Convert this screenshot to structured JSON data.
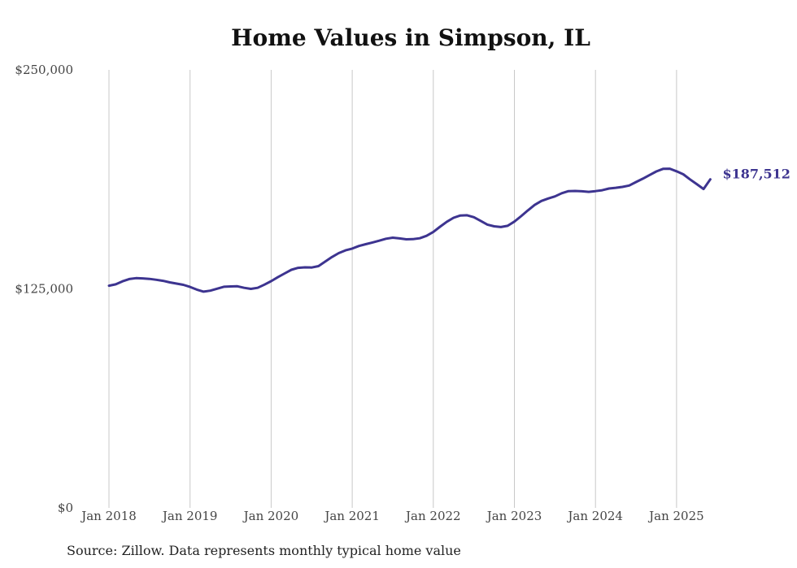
{
  "chart_data": {
    "type": "line",
    "title": "Home Values in Simpson, IL",
    "xlabel": "",
    "ylabel": "",
    "ylim": [
      0,
      250000
    ],
    "y_ticks": [
      "$0",
      "$125,000",
      "$250,000"
    ],
    "x_ticks": [
      "Jan 2018",
      "Jan 2019",
      "Jan 2020",
      "Jan 2021",
      "Jan 2022",
      "Jan 2023",
      "Jan 2024",
      "Jan 2025"
    ],
    "grid": "vertical",
    "line_color": "#3d3490",
    "last_label": "$187,512",
    "series": [
      {
        "x": [
          "2018-01",
          "2018-02",
          "2018-03",
          "2018-04",
          "2018-05",
          "2018-06",
          "2018-07",
          "2018-08",
          "2018-09",
          "2018-10",
          "2018-11",
          "2018-12",
          "2019-01",
          "2019-02",
          "2019-03",
          "2019-04",
          "2019-05",
          "2019-06",
          "2019-07",
          "2019-08",
          "2019-09",
          "2019-10",
          "2019-11",
          "2019-12",
          "2020-01",
          "2020-02",
          "2020-03",
          "2020-04",
          "2020-05",
          "2020-06",
          "2020-07",
          "2020-08",
          "2020-09",
          "2020-10",
          "2020-11",
          "2020-12",
          "2021-01",
          "2021-02",
          "2021-03",
          "2021-04",
          "2021-05",
          "2021-06",
          "2021-07",
          "2021-08",
          "2021-09",
          "2021-10",
          "2021-11",
          "2021-12",
          "2022-01",
          "2022-02",
          "2022-03",
          "2022-04",
          "2022-05",
          "2022-06",
          "2022-07",
          "2022-08",
          "2022-09",
          "2022-10",
          "2022-11",
          "2022-12",
          "2023-01",
          "2023-02",
          "2023-03",
          "2023-04",
          "2023-05",
          "2023-06",
          "2023-07",
          "2023-08",
          "2023-09",
          "2023-10",
          "2023-11",
          "2023-12",
          "2024-01",
          "2024-02",
          "2024-03",
          "2024-04",
          "2024-05",
          "2024-06",
          "2024-07",
          "2024-08",
          "2024-09",
          "2024-10",
          "2024-11",
          "2024-12",
          "2025-01",
          "2025-02",
          "2025-03",
          "2025-04",
          "2025-05",
          "2025-06"
        ],
        "y": [
          126800,
          127600,
          129300,
          130600,
          131100,
          131000,
          130700,
          130200,
          129600,
          128700,
          128000,
          127300,
          126100,
          124600,
          123400,
          124000,
          125100,
          126200,
          126400,
          126500,
          125600,
          125000,
          125600,
          127400,
          129400,
          131700,
          133800,
          135900,
          137000,
          137300,
          137200,
          138000,
          140600,
          143200,
          145400,
          147000,
          148000,
          149500,
          150500,
          151500,
          152500,
          153600,
          154200,
          153800,
          153300,
          153400,
          153900,
          155300,
          157500,
          160500,
          163300,
          165600,
          166900,
          167000,
          165900,
          163800,
          161700,
          160700,
          160300,
          161000,
          163400,
          166500,
          169800,
          172900,
          175200,
          176600,
          177800,
          179600,
          180800,
          180900,
          180700,
          180400,
          180800,
          181300,
          182300,
          182700,
          183200,
          184000,
          186000,
          187900,
          190000,
          192000,
          193500,
          193600,
          192100,
          190400,
          187500,
          184800,
          182000,
          187512
        ]
      }
    ]
  },
  "source_text": "Source: Zillow. Data represents monthly typical home value"
}
